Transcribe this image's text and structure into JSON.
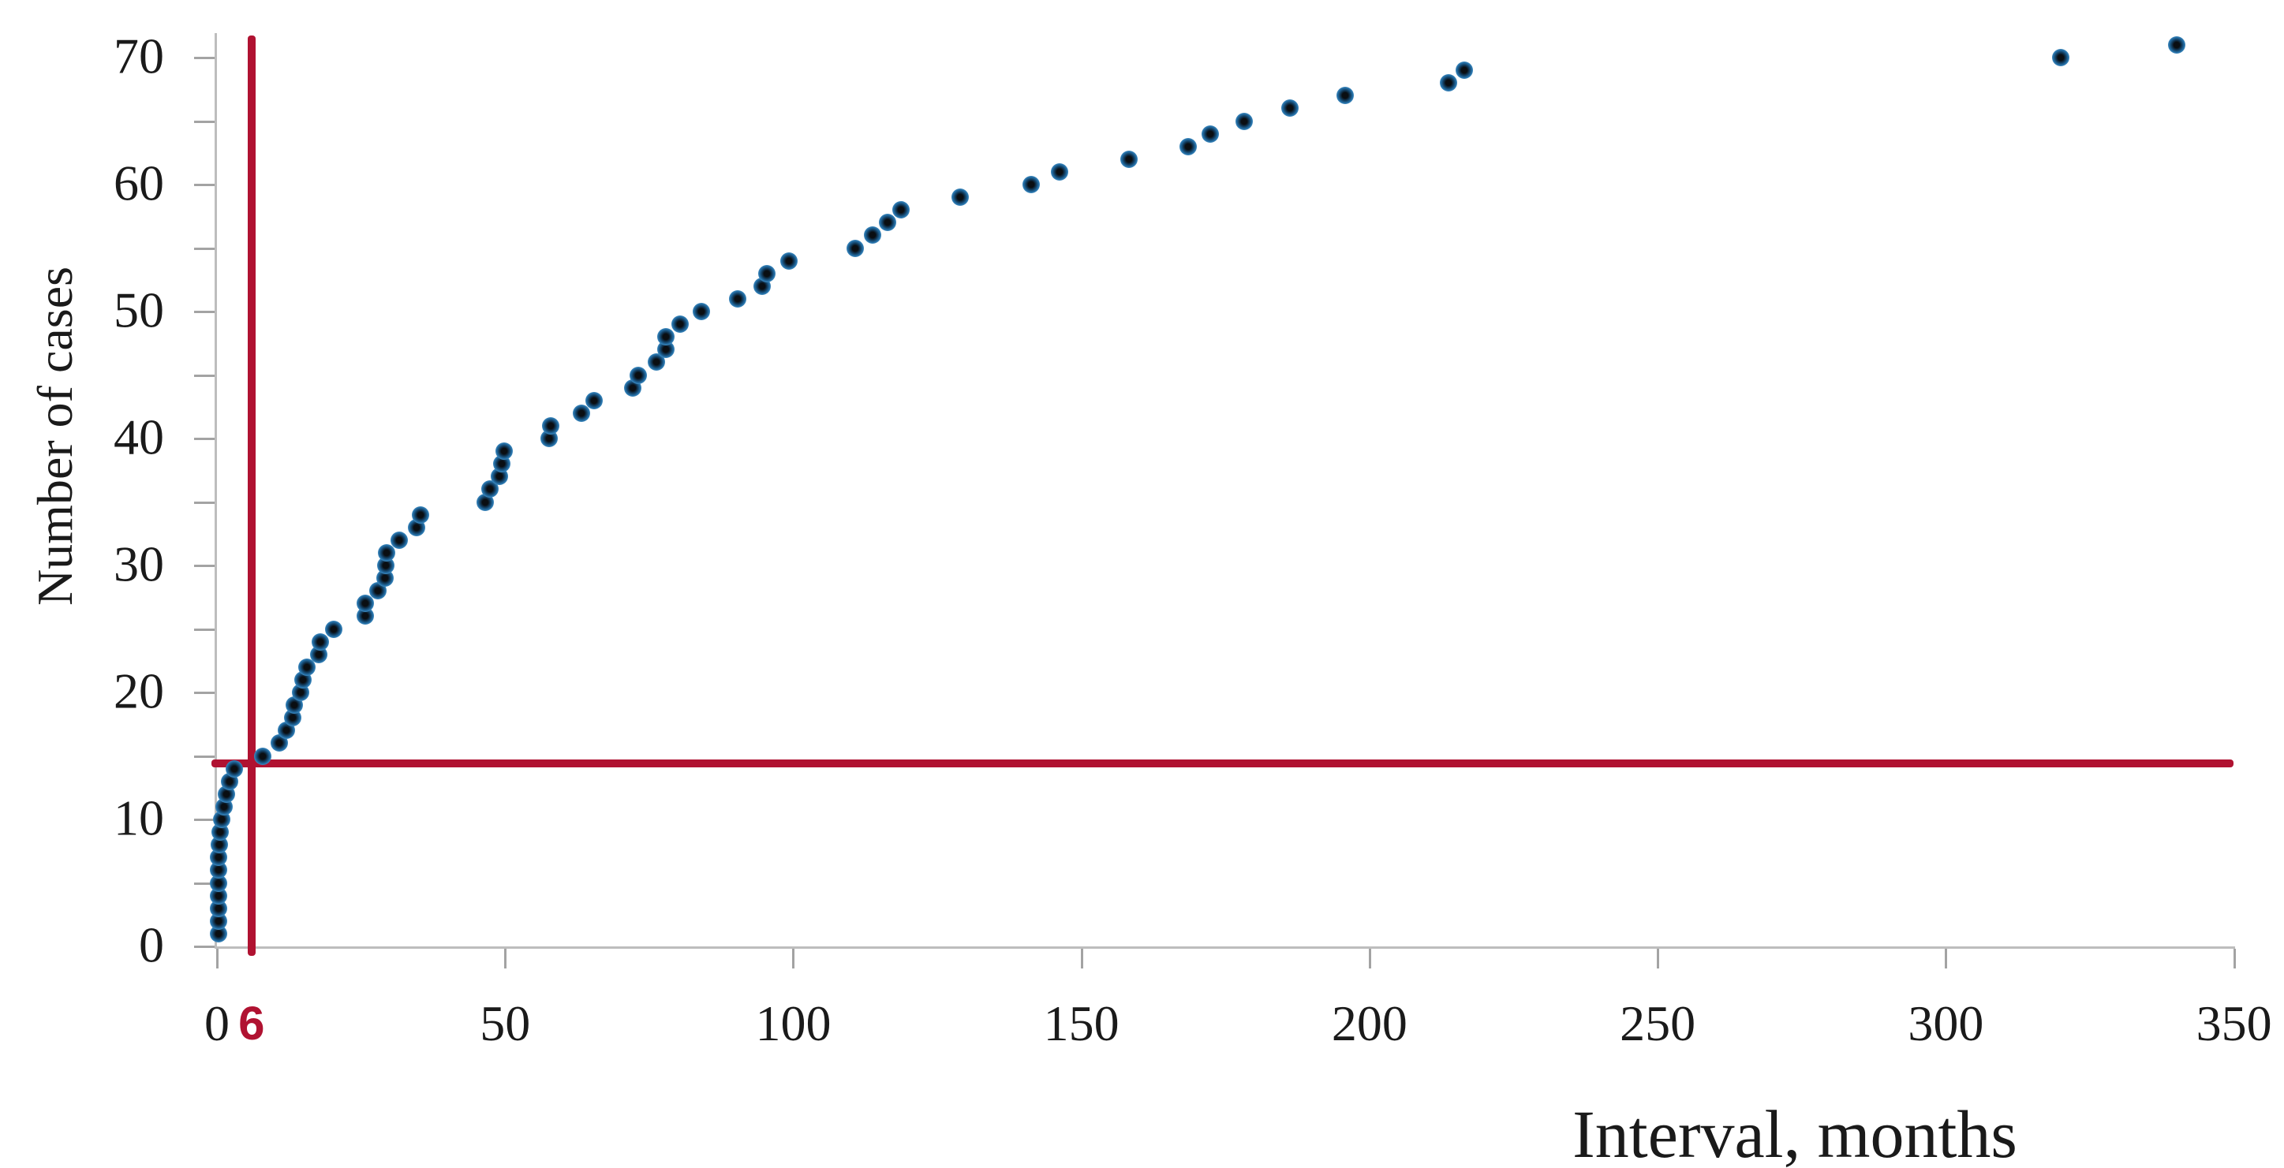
{
  "chart_data": {
    "type": "scatter",
    "title": "",
    "xlabel": "Interval, months",
    "ylabel": "Number of cases",
    "xlim": [
      0,
      350
    ],
    "ylim": [
      0,
      70
    ],
    "x_ticks": [
      0,
      50,
      100,
      150,
      200,
      250,
      300,
      350
    ],
    "y_ticks": [
      0,
      10,
      20,
      30,
      40,
      50,
      60,
      70
    ],
    "y_minor_tick_step": 5,
    "grid": false,
    "legend": null,
    "colors": {
      "point_fill": "#2672aa",
      "point_core": "#0a0e12",
      "point_halo": "#b7d7ea",
      "reference_line": "#b01231",
      "axis_line": "#bdbdbd",
      "tick_mark": "#a3a3a3",
      "text": "#1a1a1a"
    },
    "reference_lines": [
      {
        "orientation": "vertical",
        "x": 6,
        "label": "6",
        "color": "#b01231"
      },
      {
        "orientation": "horizontal",
        "y": 14.4,
        "label": "",
        "color": "#b01231"
      }
    ],
    "series": [
      {
        "name": "cases",
        "points": [
          [
            0.3,
            1
          ],
          [
            0.3,
            2
          ],
          [
            0.3,
            3
          ],
          [
            0.3,
            4
          ],
          [
            0.3,
            5
          ],
          [
            0.3,
            6
          ],
          [
            0.3,
            7
          ],
          [
            0.4,
            8
          ],
          [
            0.6,
            9
          ],
          [
            0.8,
            10
          ],
          [
            1.2,
            11
          ],
          [
            1.6,
            12
          ],
          [
            2.2,
            13
          ],
          [
            3,
            14
          ],
          [
            8,
            15
          ],
          [
            10.8,
            16
          ],
          [
            12.1,
            17
          ],
          [
            13.1,
            18
          ],
          [
            13.4,
            19
          ],
          [
            14.5,
            20
          ],
          [
            14.9,
            21
          ],
          [
            15.6,
            22
          ],
          [
            17.6,
            23
          ],
          [
            18,
            24
          ],
          [
            20.3,
            25
          ],
          [
            25.8,
            26
          ],
          [
            25.8,
            27
          ],
          [
            27.9,
            28
          ],
          [
            29.2,
            29
          ],
          [
            29.3,
            30
          ],
          [
            29.4,
            31
          ],
          [
            31.6,
            32
          ],
          [
            34.7,
            33
          ],
          [
            35.3,
            34
          ],
          [
            46.6,
            35
          ],
          [
            47.3,
            36
          ],
          [
            49,
            37
          ],
          [
            49.4,
            38
          ],
          [
            49.8,
            39
          ],
          [
            57.7,
            40
          ],
          [
            57.9,
            41
          ],
          [
            63.2,
            42
          ],
          [
            65.5,
            43
          ],
          [
            72.1,
            44
          ],
          [
            73.1,
            45
          ],
          [
            76.2,
            46
          ],
          [
            77.9,
            47
          ],
          [
            77.9,
            48
          ],
          [
            80.4,
            49
          ],
          [
            84.1,
            50
          ],
          [
            90.3,
            51
          ],
          [
            94.6,
            52
          ],
          [
            95.4,
            53
          ],
          [
            99.2,
            54
          ],
          [
            110.7,
            55
          ],
          [
            113.8,
            56
          ],
          [
            116.4,
            57
          ],
          [
            118.7,
            58
          ],
          [
            128.9,
            59
          ],
          [
            141.3,
            60
          ],
          [
            146.2,
            61
          ],
          [
            158.2,
            62
          ],
          [
            168.5,
            63
          ],
          [
            172.4,
            64
          ],
          [
            178.2,
            65
          ],
          [
            186.2,
            66
          ],
          [
            195.8,
            67
          ],
          [
            213.7,
            68
          ],
          [
            216.5,
            69
          ],
          [
            320,
            70
          ],
          [
            340,
            71
          ]
        ]
      }
    ]
  }
}
